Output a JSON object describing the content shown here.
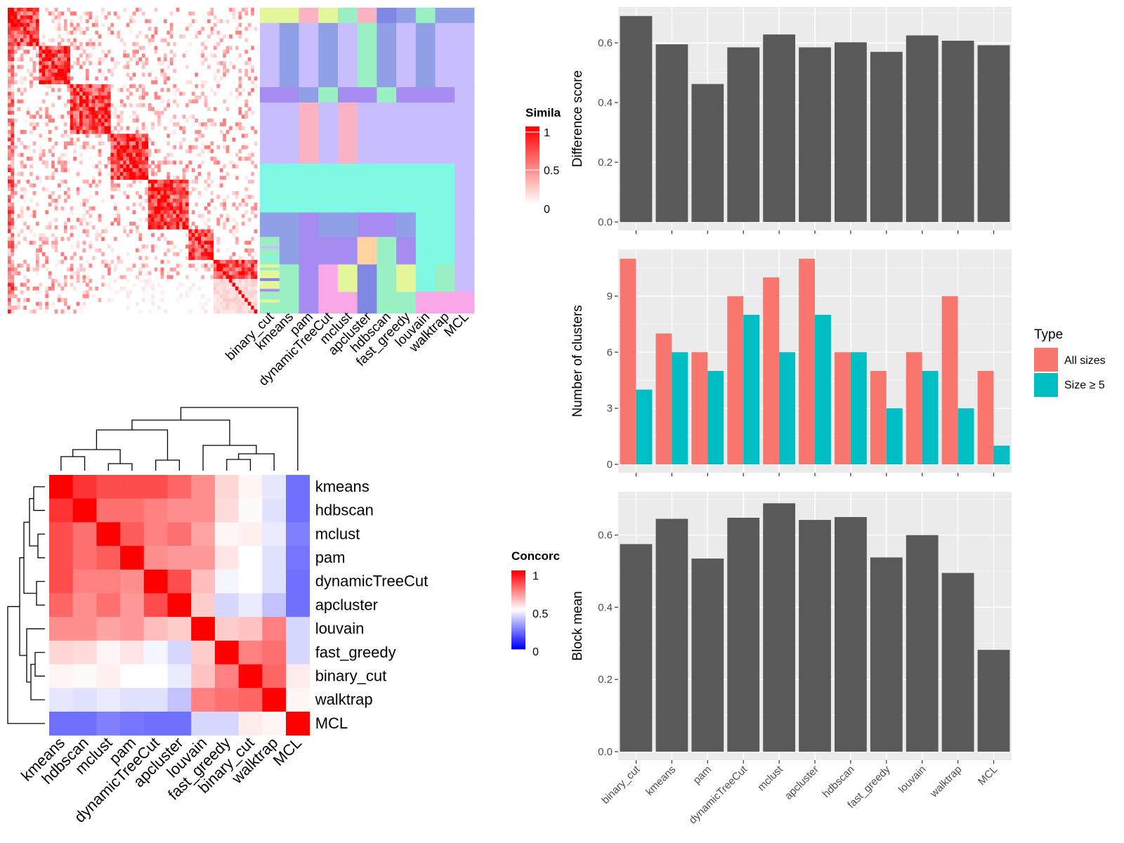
{
  "colors": {
    "panel_bg": "#EBEBEB",
    "bar_gray": "#595959",
    "all_sizes": "#F8766D",
    "size_ge5": "#00BFC4",
    "heat_high": "#FF0000",
    "heat_low": "#0000FF",
    "heat_mid": "#FFFFFF"
  },
  "legends": {
    "similarity": {
      "title": "Simila",
      "ticks": [
        "1",
        "0.5",
        "0"
      ]
    },
    "concordance": {
      "title": "Concorc",
      "ticks": [
        "1",
        "0.5",
        "0"
      ]
    },
    "type": {
      "title": "Type",
      "entries": [
        "All sizes",
        "Size ≥ 5"
      ]
    }
  },
  "chart_data": [
    {
      "type": "heatmap",
      "name": "similarity-heatmap",
      "rows": 80,
      "cols": 80,
      "note_blocks": [
        [
          0,
          10
        ],
        [
          10,
          20
        ],
        [
          20,
          33
        ],
        [
          33,
          45
        ],
        [
          45,
          58
        ],
        [
          58,
          66
        ],
        [
          66,
          80
        ]
      ],
      "methods_axis": [
        "binary_cut",
        "kmeans",
        "pam",
        "dynamicTreeCut",
        "mclust",
        "apcluster",
        "hdbscan",
        "fast_greedy",
        "louvain",
        "walktrap",
        "MCL"
      ],
      "legend": "Similarity",
      "range": [
        0,
        1
      ]
    },
    {
      "type": "heatmap",
      "name": "concordance-heatmap",
      "labels": [
        "kmeans",
        "hdbscan",
        "mclust",
        "pam",
        "dynamicTreeCut",
        "apcluster",
        "louvain",
        "fast_greedy",
        "binary_cut",
        "walktrap",
        "MCL"
      ],
      "values": [
        [
          1.0,
          0.9,
          0.85,
          0.85,
          0.85,
          0.8,
          0.72,
          0.58,
          0.52,
          0.45,
          0.22
        ],
        [
          0.9,
          1.0,
          0.78,
          0.78,
          0.75,
          0.72,
          0.72,
          0.57,
          0.51,
          0.44,
          0.22
        ],
        [
          0.85,
          0.78,
          1.0,
          0.82,
          0.75,
          0.78,
          0.68,
          0.52,
          0.53,
          0.46,
          0.25
        ],
        [
          0.85,
          0.78,
          0.82,
          1.0,
          0.72,
          0.7,
          0.7,
          0.55,
          0.5,
          0.44,
          0.23
        ],
        [
          0.85,
          0.75,
          0.75,
          0.72,
          1.0,
          0.85,
          0.63,
          0.48,
          0.5,
          0.44,
          0.22
        ],
        [
          0.8,
          0.72,
          0.78,
          0.7,
          0.85,
          1.0,
          0.6,
          0.42,
          0.46,
          0.38,
          0.22
        ],
        [
          0.72,
          0.72,
          0.68,
          0.7,
          0.63,
          0.6,
          1.0,
          0.6,
          0.62,
          0.75,
          0.42
        ],
        [
          0.58,
          0.57,
          0.52,
          0.55,
          0.48,
          0.42,
          0.6,
          1.0,
          0.75,
          0.78,
          0.42
        ],
        [
          0.52,
          0.51,
          0.53,
          0.5,
          0.5,
          0.46,
          0.62,
          0.75,
          1.0,
          0.8,
          0.54
        ],
        [
          0.45,
          0.44,
          0.46,
          0.44,
          0.44,
          0.38,
          0.75,
          0.78,
          0.8,
          1.0,
          0.52
        ],
        [
          0.22,
          0.22,
          0.25,
          0.23,
          0.22,
          0.22,
          0.42,
          0.42,
          0.54,
          0.52,
          1.0
        ]
      ],
      "range": [
        0,
        1
      ],
      "legend": "Concordance"
    },
    {
      "type": "bar",
      "name": "difference-score",
      "categories": [
        "binary_cut",
        "kmeans",
        "pam",
        "dynamicTreeCut",
        "mclust",
        "apcluster",
        "hdbscan",
        "fast_greedy",
        "louvain",
        "walktrap",
        "MCL"
      ],
      "values": [
        0.69,
        0.595,
        0.462,
        0.585,
        0.628,
        0.585,
        0.602,
        0.57,
        0.625,
        0.607,
        0.592
      ],
      "ylabel": "Difference score",
      "ylim": [
        0,
        0.72
      ],
      "yticks": [
        "0.0",
        "0.2",
        "0.4",
        "0.6"
      ],
      "grid": true
    },
    {
      "type": "bar",
      "name": "number-of-clusters",
      "categories": [
        "binary_cut",
        "kmeans",
        "pam",
        "dynamicTreeCut",
        "mclust",
        "apcluster",
        "hdbscan",
        "fast_greedy",
        "louvain",
        "walktrap",
        "MCL"
      ],
      "series": [
        {
          "name": "All sizes",
          "values": [
            11,
            7,
            6,
            9,
            10,
            11,
            6,
            5,
            6,
            9,
            5
          ]
        },
        {
          "name": "Size ≥ 5",
          "values": [
            4,
            6,
            5,
            8,
            6,
            8,
            6,
            3,
            5,
            3,
            1
          ]
        }
      ],
      "ylabel": "Number of clusters",
      "ylim": [
        0,
        11.5
      ],
      "yticks": [
        "0",
        "3",
        "6",
        "9"
      ],
      "legend_position": "right",
      "grid": true
    },
    {
      "type": "bar",
      "name": "block-mean",
      "categories": [
        "binary_cut",
        "kmeans",
        "pam",
        "dynamicTreeCut",
        "mclust",
        "apcluster",
        "hdbscan",
        "fast_greedy",
        "louvain",
        "walktrap",
        "MCL"
      ],
      "values": [
        0.575,
        0.645,
        0.535,
        0.648,
        0.688,
        0.642,
        0.65,
        0.538,
        0.6,
        0.495,
        0.282
      ],
      "ylabel": "Block mean",
      "ylim": [
        0,
        0.72
      ],
      "yticks": [
        "0.0",
        "0.2",
        "0.4",
        "0.6"
      ],
      "grid": true
    }
  ]
}
